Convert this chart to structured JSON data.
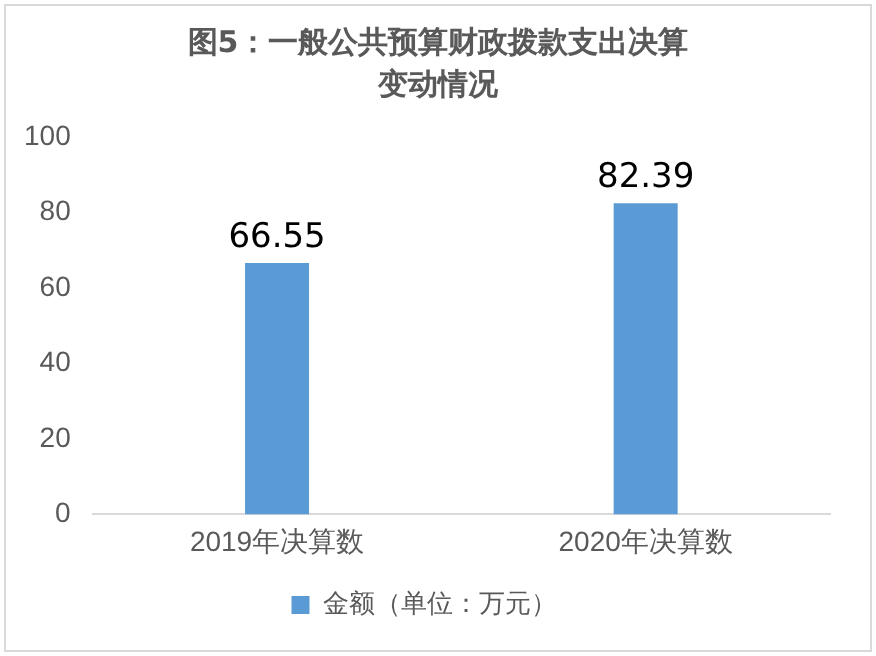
{
  "chart_data": {
    "type": "bar",
    "title": "图5：一般公共预算财政拨款支出决算变动情况",
    "categories": [
      "2019年决算数",
      "2020年决算数"
    ],
    "series": [
      {
        "name": "金额（单位：万元）",
        "color": "#5b9bd5",
        "values": [
          66.55,
          82.39
        ]
      }
    ],
    "ylim": [
      0,
      100
    ],
    "yticks": [
      0,
      20,
      40,
      60,
      80,
      100
    ],
    "grid": false,
    "legend": "bottom",
    "data_labels": true
  }
}
